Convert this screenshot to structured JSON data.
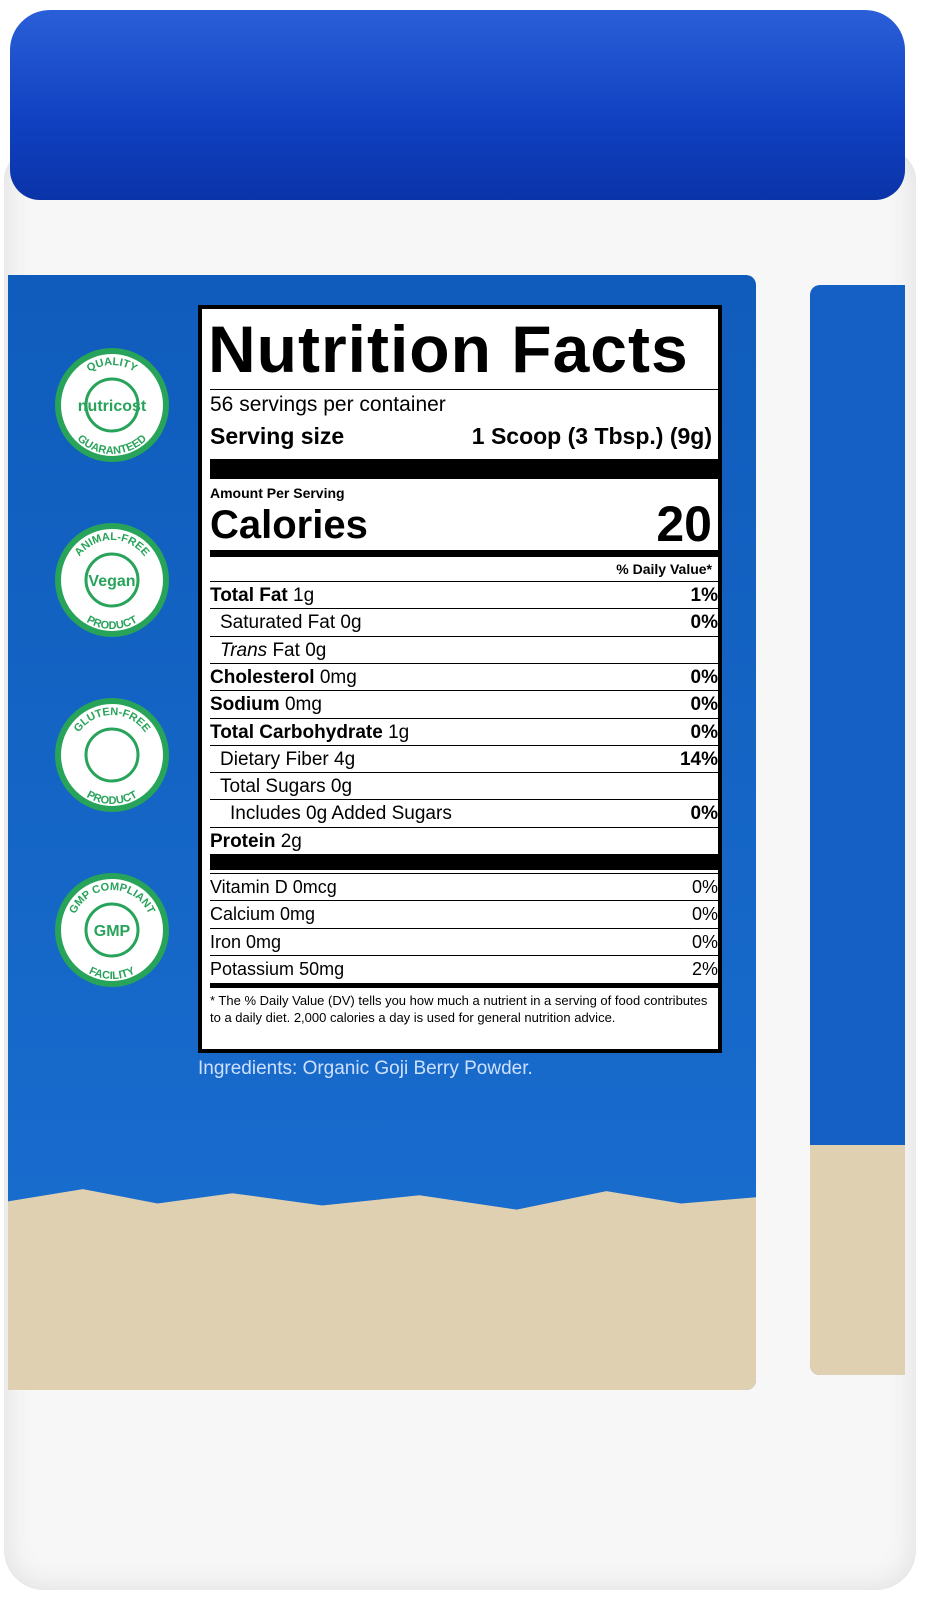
{
  "badges": [
    {
      "top": "QUALITY",
      "center": "nutricost",
      "bottom": "GUARANTEED"
    },
    {
      "top": "ANIMAL-FREE",
      "center": "Vegan",
      "bottom": "PRODUCT"
    },
    {
      "top": "GLUTEN-FREE",
      "bottom": "PRODUCT"
    },
    {
      "top": "GMP COMPLIANT",
      "center": "GMP",
      "bottom": "FACILITY"
    }
  ],
  "nutrition": {
    "title": "Nutrition Facts",
    "servings": "56 servings per container",
    "serving_size_label": "Serving size",
    "serving_size": "1 Scoop (3 Tbsp.) (9g)",
    "amount_per_serving": "Amount Per Serving",
    "calories_label": "Calories",
    "calories": "20",
    "dv_header": "% Daily Value*",
    "rows": [
      {
        "name": "Total Fat",
        "amount": "1g",
        "dv": "1%",
        "sub": [
          {
            "name": "Saturated Fat",
            "amount": "0g",
            "dv": "0%"
          },
          {
            "name_italic": "Trans",
            "name": "Fat",
            "amount": "0g"
          }
        ]
      },
      {
        "name": "Cholesterol",
        "amount": "0mg",
        "dv": "0%"
      },
      {
        "name": "Sodium",
        "amount": "0mg",
        "dv": "0%"
      },
      {
        "name": "Total Carbohydrate",
        "amount": "1g",
        "dv": "0%",
        "sub": [
          {
            "name": "Dietary Fiber",
            "amount": "4g",
            "dv": "14%"
          },
          {
            "name": "Total Sugars",
            "amount": "0g",
            "sub": [
              {
                "name": "Includes 0g Added Sugars",
                "dv": "0%"
              }
            ]
          }
        ]
      },
      {
        "name": "Protein",
        "amount": "2g"
      }
    ],
    "vitamins": [
      {
        "name": "Vitamin D",
        "amount": "0mcg",
        "dv": "0%"
      },
      {
        "name": "Calcium",
        "amount": "0mg",
        "dv": "0%"
      },
      {
        "name": "Iron",
        "amount": "0mg",
        "dv": "0%"
      },
      {
        "name": "Potassium",
        "amount": "50mg",
        "dv": "2%"
      }
    ],
    "footnote": "* The % Daily Value (DV) tells you how much a nutrient in a serving of food contributes to a daily diet. 2,000 calories a day is used for general nutrition advice."
  },
  "ingredients": "Ingredients: Organic Goji Berry Powder."
}
